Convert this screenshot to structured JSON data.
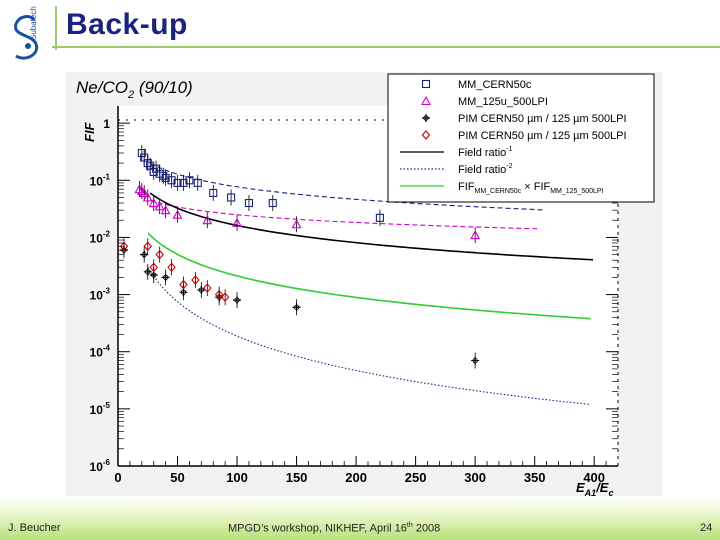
{
  "slide": {
    "title": "Back-up",
    "footer_author": "J. Beucher",
    "footer_event": "MPGD’s workshop, NIKHEF,  April 16",
    "footer_event_sup": "th",
    "footer_event_year": " 2008",
    "page_number": "24"
  },
  "logo": {
    "icon": "subatech-logo-icon",
    "text": "Subatech"
  },
  "colors": {
    "title": "#1a237e",
    "accent_green": "#9ccc65"
  },
  "chart_data": {
    "type": "scatter",
    "title": "Ne/CO",
    "title_sub": "2",
    "title_suffix": " (90/10)",
    "ylabel": "FIF",
    "xlabel_main": "E",
    "xlabel_sub1": "A1",
    "xlabel_mid": "/E",
    "xlabel_sub2": "c",
    "xlim": [
      0,
      420
    ],
    "ylim_log10": [
      -6,
      0.3
    ],
    "y_scale": "log",
    "x_ticks": [
      0,
      50,
      100,
      150,
      200,
      250,
      300,
      350,
      400
    ],
    "y_ticks": [
      {
        "exp": 0,
        "label": "1",
        "sup": ""
      },
      {
        "exp": -1,
        "label": "10",
        "sup": "-1"
      },
      {
        "exp": -2,
        "label": "10",
        "sup": "-2"
      },
      {
        "exp": -3,
        "label": "10",
        "sup": "-3"
      },
      {
        "exp": -4,
        "label": "10",
        "sup": "-4"
      },
      {
        "exp": -5,
        "label": "10",
        "sup": "-5"
      },
      {
        "exp": -6,
        "label": "10",
        "sup": "-6"
      }
    ],
    "legend_position": "top-right",
    "legend": [
      {
        "marker": "square",
        "color": "#1a237e",
        "label": "MM_CERN50c"
      },
      {
        "marker": "triangle",
        "color": "#cc00cc",
        "label": "MM_125u_500LPI"
      },
      {
        "marker": "cross",
        "color": "#000000",
        "label": "PIM CERN50 µm / 125 µm 500LPI"
      },
      {
        "marker": "diamond",
        "color": "#cc0000",
        "label": "PIM CERN50 µm / 125 µm 500LPI"
      },
      {
        "line": "solid",
        "color": "#000000",
        "label": "Field ratio",
        "sup": "-1"
      },
      {
        "line": "dotted",
        "color": "#1a237e",
        "label": "Field ratio",
        "sup": "-2"
      },
      {
        "line": "solid",
        "color": "#33cc33",
        "label": "FIF",
        "label_sub": "MM_CERN50c",
        "label_mid": " × FIF",
        "label_sub2": "MM_125_500LPI"
      }
    ],
    "series": [
      {
        "name": "MM_CERN50c",
        "marker": "square",
        "color": "#1a237e",
        "points": [
          [
            20,
            0.3
          ],
          [
            22,
            0.25
          ],
          [
            25,
            0.2
          ],
          [
            27,
            0.18
          ],
          [
            30,
            0.14
          ],
          [
            32,
            0.16
          ],
          [
            35,
            0.13
          ],
          [
            38,
            0.12
          ],
          [
            40,
            0.11
          ],
          [
            45,
            0.1
          ],
          [
            50,
            0.09
          ],
          [
            55,
            0.09
          ],
          [
            60,
            0.1
          ],
          [
            67,
            0.09
          ],
          [
            80,
            0.06
          ],
          [
            95,
            0.05
          ],
          [
            110,
            0.04
          ],
          [
            130,
            0.04
          ],
          [
            220,
            0.022
          ]
        ]
      },
      {
        "name": "MM_125u_500LPI",
        "marker": "triangle",
        "color": "#cc00cc",
        "points": [
          [
            18,
            0.07
          ],
          [
            20,
            0.065
          ],
          [
            22,
            0.06
          ],
          [
            25,
            0.05
          ],
          [
            30,
            0.04
          ],
          [
            35,
            0.035
          ],
          [
            40,
            0.03
          ],
          [
            50,
            0.025
          ],
          [
            75,
            0.02
          ],
          [
            100,
            0.018
          ],
          [
            150,
            0.017
          ],
          [
            300,
            0.011
          ]
        ]
      },
      {
        "name": "PIM CERN50 µm / 125 µm 500LPI",
        "marker": "cross",
        "color": "#000000",
        "points": [
          [
            5,
            0.006
          ],
          [
            22,
            0.005
          ],
          [
            25,
            0.0025
          ],
          [
            30,
            0.0022
          ],
          [
            40,
            0.002
          ],
          [
            55,
            0.0011
          ],
          [
            70,
            0.0012
          ],
          [
            85,
            0.0009
          ],
          [
            100,
            0.0008
          ],
          [
            150,
            0.0006
          ],
          [
            300,
            7e-05
          ]
        ]
      },
      {
        "name": "PIM CERN50 µm / 125 µm 500LPI",
        "marker": "diamond",
        "color": "#cc0000",
        "points": [
          [
            5,
            0.007
          ],
          [
            25,
            0.007
          ],
          [
            30,
            0.003
          ],
          [
            35,
            0.005
          ],
          [
            45,
            0.003
          ],
          [
            55,
            0.0015
          ],
          [
            65,
            0.0018
          ],
          [
            75,
            0.0013
          ],
          [
            85,
            0.001
          ],
          [
            90,
            0.0009
          ]
        ]
      }
    ],
    "curves": [
      {
        "style": "dashed",
        "color": "#1a237e",
        "x_range": [
          27,
          360
        ],
        "anchor_x": 27,
        "anchor_y": 0.2,
        "power": 0.73
      },
      {
        "style": "dashed",
        "color": "#cc00cc",
        "x_range": [
          27,
          355
        ],
        "anchor_x": 27,
        "anchor_y": 0.045,
        "power": 0.45
      },
      {
        "style": "solid",
        "color": "#000000",
        "x_range": [
          27,
          400
        ],
        "anchor_x": 27,
        "anchor_y": 0.06,
        "power": 1
      },
      {
        "style": "solid",
        "color": "#33cc33",
        "x_range": [
          25,
          400
        ],
        "anchor_x": 25,
        "anchor_y": 0.012,
        "power": 1.25
      },
      {
        "style": "dotted",
        "color": "#1a237e",
        "x_range": [
          25,
          400
        ],
        "anchor_x": 25,
        "anchor_y": 0.003,
        "power": 2
      }
    ]
  }
}
